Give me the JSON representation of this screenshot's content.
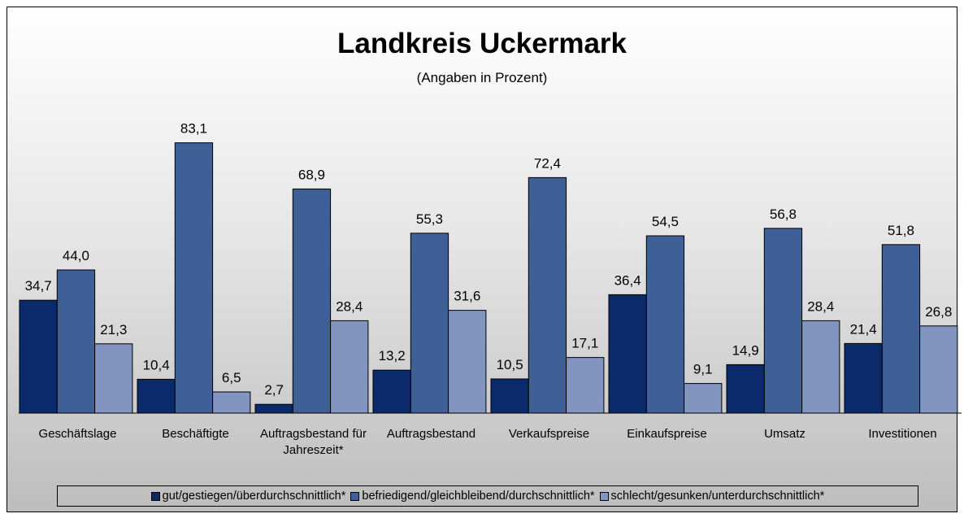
{
  "chart_data": {
    "type": "bar",
    "title": "Landkreis Uckermark",
    "subtitle": "(Angaben in Prozent)",
    "categories": [
      "Geschäftslage",
      "Beschäftigte",
      "Auftragsbestand für Jahreszeit*",
      "Auftragsbestand",
      "Verkaufspreise",
      "Einkaufspreise",
      "Umsatz",
      "Investitionen"
    ],
    "series": [
      {
        "name": "gut/gestiegen/überdurchschnittlich*",
        "color": "#0b2a6b",
        "values": [
          34.7,
          10.4,
          2.7,
          13.2,
          10.5,
          36.4,
          14.9,
          21.4
        ],
        "value_labels": [
          "34,7",
          "10,4",
          "2,7",
          "13,2",
          "10,5",
          "36,4",
          "14,9",
          "21,4"
        ]
      },
      {
        "name": "befriedigend/gleichbleibend/durchschnittlich*",
        "color": "#3f5f97",
        "values": [
          44.0,
          83.1,
          68.9,
          55.3,
          72.4,
          54.5,
          56.8,
          51.8
        ],
        "value_labels": [
          "44,0",
          "83,1",
          "68,9",
          "55,3",
          "72,4",
          "54,5",
          "56,8",
          "51,8"
        ]
      },
      {
        "name": "schlecht/gesunken/unterdurchschnittlich*",
        "color": "#8195c0",
        "values": [
          21.3,
          6.5,
          28.4,
          31.6,
          17.1,
          9.1,
          28.4,
          26.8
        ],
        "value_labels": [
          "21,3",
          "6,5",
          "28,4",
          "31,6",
          "17,1",
          "9,1",
          "28,4",
          "26,8"
        ]
      }
    ],
    "ylim": [
      0,
      100
    ],
    "legend": "bottom"
  }
}
